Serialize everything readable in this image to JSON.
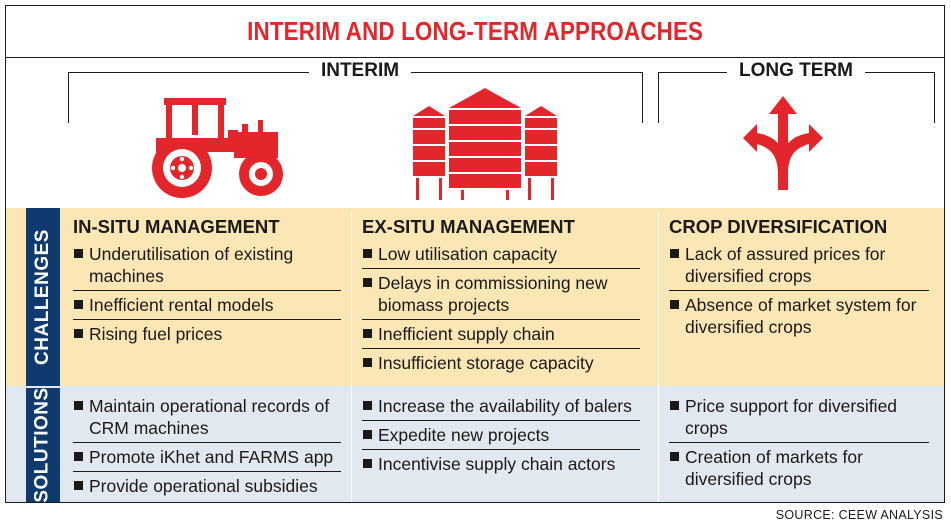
{
  "title": "INTERIM AND LONG-TERM APPROACHES",
  "groups": {
    "interim": "INTERIM",
    "long_term": "LONG TERM"
  },
  "icons": {
    "interim_1": "tractor-icon",
    "interim_2": "silos-icon",
    "long_term": "diverging-arrows-icon"
  },
  "colors": {
    "accent_red": "#e3262b",
    "challenges_band": "#fbe6b5",
    "solutions_band": "#e1e8f0",
    "label_navy": "#0e3a6e"
  },
  "rows": {
    "challenges": "CHALLENGES",
    "solutions": "SOLUTIONS"
  },
  "columns": [
    {
      "heading": "IN-SITU MANAGEMENT",
      "challenges": [
        "Underutilisation of existing machines",
        "Inefficient rental models",
        "Rising fuel prices"
      ],
      "solutions": [
        "Maintain operational records of CRM machines",
        "Promote iKhet and FARMS app",
        "Provide operational subsidies"
      ]
    },
    {
      "heading": "EX-SITU MANAGEMENT",
      "challenges": [
        "Low utilisation capacity",
        "Delays in commissioning new biomass projects",
        "Inefficient supply chain",
        "Insufficient storage capacity"
      ],
      "solutions": [
        "Increase the availability of balers",
        "Expedite new projects",
        "Incentivise supply chain actors"
      ]
    },
    {
      "heading": "CROP DIVERSIFICATION",
      "challenges": [
        "Lack of assured prices for diversified crops",
        "Absence of market system for diversified crops"
      ],
      "solutions": [
        "Price support for diversified crops",
        "Creation of markets for diversified crops"
      ]
    }
  ],
  "source": "SOURCE: CEEW ANALYSIS"
}
